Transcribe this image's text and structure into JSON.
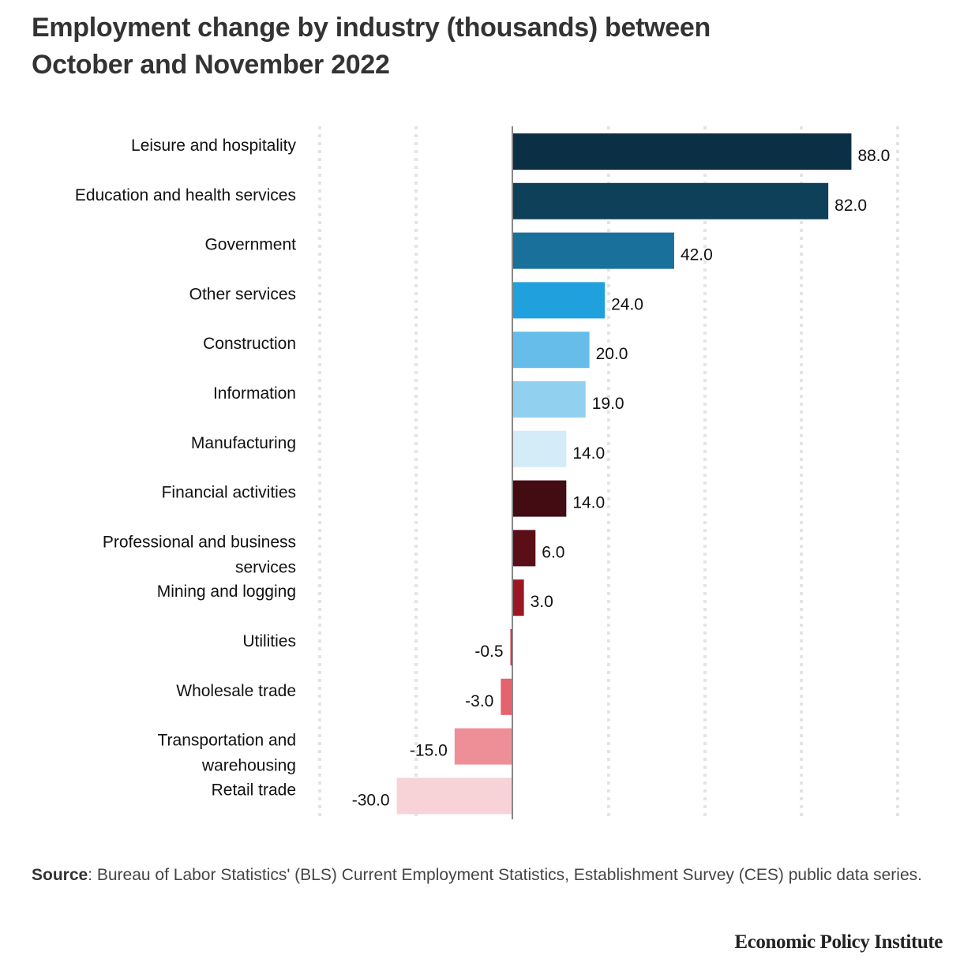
{
  "chart_data": {
    "type": "bar",
    "orientation": "horizontal",
    "title": "Employment change by industry (thousands) between October and November 2022",
    "xlabel": "",
    "ylabel": "",
    "xlim": [
      -50,
      100
    ],
    "grid": true,
    "grid_ticks": [
      -50,
      -25,
      0,
      25,
      50,
      75,
      100
    ],
    "tick_labels_shown": false,
    "categories": [
      "Leisure and hospitality",
      "Education and health services",
      "Government",
      "Other services",
      "Construction",
      "Information",
      "Manufacturing",
      "Financial activities",
      "Professional and business services",
      "Mining and logging",
      "Utilities",
      "Wholesale trade",
      "Transportation and warehousing",
      "Retail trade"
    ],
    "values": [
      88.0,
      82.0,
      42.0,
      24.0,
      20.0,
      19.0,
      14.0,
      14.0,
      6.0,
      3.0,
      -0.5,
      -3.0,
      -15.0,
      -30.0
    ],
    "value_labels": [
      "88.0",
      "82.0",
      "42.0",
      "24.0",
      "20.0",
      "19.0",
      "14.0",
      "14.0",
      "6.0",
      "3.0",
      "-0.5",
      "-3.0",
      "-15.0",
      "-30.0"
    ],
    "label_lines": [
      [
        "Leisure and hospitality"
      ],
      [
        "Education and health services"
      ],
      [
        "Government"
      ],
      [
        "Other services"
      ],
      [
        "Construction"
      ],
      [
        "Information"
      ],
      [
        "Manufacturing"
      ],
      [
        "Financial activities"
      ],
      [
        "Professional and business",
        "services"
      ],
      [
        "Mining and logging"
      ],
      [
        "Utilities"
      ],
      [
        "Wholesale trade"
      ],
      [
        "Transportation and",
        "warehousing"
      ],
      [
        "Retail trade"
      ]
    ],
    "colors": [
      "#0b3045",
      "#0e4159",
      "#18709b",
      "#20a0dd",
      "#66bde9",
      "#92d0f0",
      "#d4ebf8",
      "#430b12",
      "#5a0e17",
      "#9c1724",
      "#d11f33",
      "#e5636f",
      "#ee8f98",
      "#f7d3d7"
    ]
  },
  "header": {
    "title_line1": "Employment change by industry (thousands) between",
    "title_line2": "October and November 2022"
  },
  "footer": {
    "source_label": "Source",
    "source_text": ": Bureau of Labor Statistics' (BLS) Current Employment Statistics, Establishment Survey (CES) public data series.",
    "brand": "Economic Policy Institute"
  }
}
